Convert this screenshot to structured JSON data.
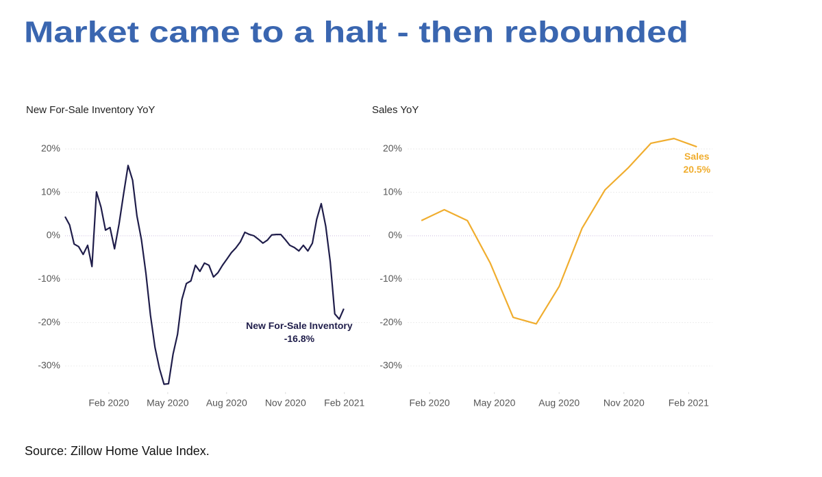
{
  "title": "Market came to a halt - then rebounded",
  "source": "Source: Zillow Home Value Index.",
  "chart_data": [
    {
      "type": "line",
      "title": "New For-Sale Inventory YoY",
      "x": [
        -0.23,
        0.0,
        0.23,
        0.46,
        0.69,
        0.92,
        1.14,
        1.37,
        1.6,
        1.83,
        2.06,
        2.29,
        2.52,
        2.75,
        2.98,
        3.21,
        3.43,
        3.66,
        3.89,
        4.12,
        4.35,
        4.58,
        4.81,
        5.04,
        5.27,
        5.5,
        5.72,
        5.95,
        6.18,
        6.41,
        6.64,
        6.87,
        7.1,
        7.33,
        7.56,
        7.79,
        8.01,
        8.24,
        8.47,
        8.7,
        8.93,
        9.16,
        9.39,
        9.62,
        9.85,
        10.08,
        10.3,
        10.53,
        10.76,
        10.99,
        11.22,
        11.45,
        11.68,
        11.91,
        12.14,
        12.37,
        12.59,
        12.82,
        13.05,
        13.28,
        13.51,
        13.74,
        13.97
      ],
      "series": [
        {
          "name": "New For-Sale Inventory",
          "color": "#1f1d4a",
          "end_label": "-16.8%",
          "values": [
            4.4,
            2.5,
            -1.9,
            -2.5,
            -4.3,
            -2.2,
            -7.1,
            10.1,
            6.6,
            1.3,
            1.9,
            -3.0,
            2.7,
            9.6,
            16.2,
            12.8,
            4.6,
            -0.9,
            -8.7,
            -18.3,
            -25.7,
            -30.6,
            -34.2,
            -34.1,
            -27.3,
            -22.7,
            -14.7,
            -11.0,
            -10.4,
            -6.8,
            -8.2,
            -6.3,
            -6.8,
            -9.5,
            -8.5,
            -6.8,
            -5.4,
            -3.9,
            -2.8,
            -1.4,
            0.8,
            0.3,
            0.0,
            -0.8,
            -1.7,
            -1.0,
            0.2,
            0.3,
            0.3,
            -0.9,
            -2.2,
            -2.7,
            -3.5,
            -2.2,
            -3.5,
            -1.7,
            3.8,
            7.4,
            2.2,
            -6.0,
            -18.0,
            -19.2,
            -16.8
          ]
        }
      ],
      "xlim": [
        -0.23,
        15.3
      ],
      "xticks": [
        {
          "value": 2,
          "label": "Feb 2020"
        },
        {
          "value": 5,
          "label": "May 2020"
        },
        {
          "value": 8,
          "label": "Aug 2020"
        },
        {
          "value": 11,
          "label": "Nov 2020"
        },
        {
          "value": 14,
          "label": "Feb 2021"
        }
      ],
      "ylim": [
        -36,
        24
      ],
      "yticks": [
        {
          "value": -30,
          "label": "-30%"
        },
        {
          "value": -20,
          "label": "-20%"
        },
        {
          "value": -10,
          "label": "-10%"
        },
        {
          "value": 0,
          "label": "0%"
        },
        {
          "value": 10,
          "label": "10%"
        },
        {
          "value": 20,
          "label": "20%"
        }
      ],
      "grid": true
    },
    {
      "type": "line",
      "title": "Sales YoY",
      "x": [
        1.62,
        2.68,
        3.75,
        4.81,
        5.87,
        6.94,
        8.0,
        9.06,
        10.13,
        11.19,
        12.25,
        13.32,
        14.38
      ],
      "series": [
        {
          "name": "Sales",
          "color": "#f0ad2e",
          "end_label": "20.5%",
          "values": [
            3.5,
            6.0,
            3.5,
            -6.3,
            -18.8,
            -20.3,
            -11.7,
            1.7,
            10.6,
            15.6,
            21.3,
            22.4,
            20.5
          ]
        }
      ],
      "xlim": [
        0.98,
        15.1
      ],
      "xticks": [
        {
          "value": 2,
          "label": "Feb 2020"
        },
        {
          "value": 5,
          "label": "May 2020"
        },
        {
          "value": 8,
          "label": "Aug 2020"
        },
        {
          "value": 11,
          "label": "Nov 2020"
        },
        {
          "value": 14,
          "label": "Feb 2021"
        }
      ],
      "ylim": [
        -36,
        24
      ],
      "yticks": [
        {
          "value": -30,
          "label": "-30%"
        },
        {
          "value": -20,
          "label": "-20%"
        },
        {
          "value": -10,
          "label": "-10%"
        },
        {
          "value": 0,
          "label": "0%"
        },
        {
          "value": 10,
          "label": "10%"
        },
        {
          "value": 20,
          "label": "20%"
        }
      ],
      "grid": true
    }
  ]
}
